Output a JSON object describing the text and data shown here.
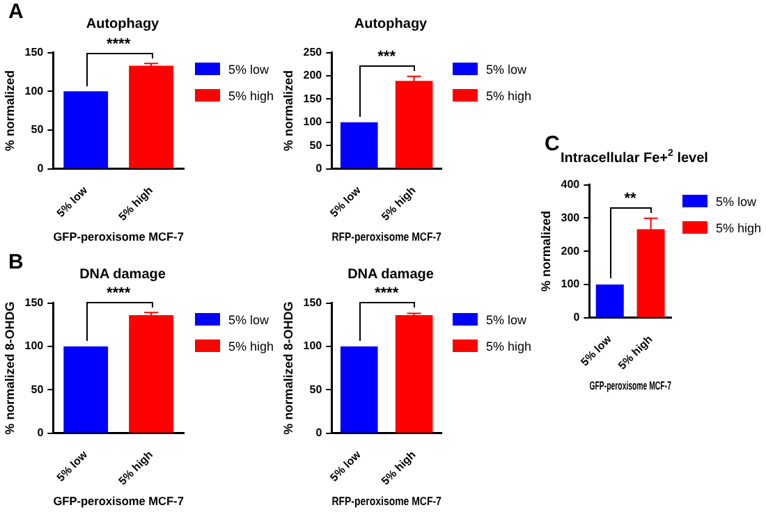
{
  "chart_data": [
    {
      "type": "bar",
      "title": "Autophagy",
      "xlabel": "GFP-peroxisome MCF-7",
      "ylabel": "% normalized",
      "categories": [
        "5% low",
        "5% high"
      ],
      "ylim": [
        0,
        150
      ],
      "yticks": [
        0,
        50,
        100,
        150
      ],
      "legend": "right",
      "annotations": [
        "A",
        "****"
      ],
      "series": [
        {
          "name": "5% low",
          "color": "#0000ff",
          "values": [
            100,
            null
          ]
        },
        {
          "name": "5% high",
          "color": "#ff0000",
          "values": [
            null,
            133
          ],
          "errors": [
            null,
            3
          ]
        }
      ]
    },
    {
      "type": "bar",
      "title": "Autophagy",
      "xlabel": "RFP-peroxisome MCF-7",
      "ylabel": "% normalized",
      "categories": [
        "5% low",
        "5% high"
      ],
      "ylim": [
        0,
        250
      ],
      "yticks": [
        0,
        50,
        100,
        150,
        200,
        250
      ],
      "legend": "right",
      "annotations": [
        "***"
      ],
      "series": [
        {
          "name": "5% low",
          "color": "#0000ff",
          "values": [
            100,
            null
          ]
        },
        {
          "name": "5% high",
          "color": "#ff0000",
          "values": [
            null,
            189
          ],
          "errors": [
            null,
            10
          ]
        }
      ]
    },
    {
      "type": "bar",
      "title": "DNA damage",
      "xlabel": "GFP-peroxisome MCF-7",
      "ylabel": "% normalized 8-OHDG",
      "categories": [
        "5% low",
        "5% high"
      ],
      "ylim": [
        0,
        150
      ],
      "yticks": [
        0,
        50,
        100,
        150
      ],
      "legend": "right",
      "annotations": [
        "B",
        "****"
      ],
      "series": [
        {
          "name": "5% low",
          "color": "#0000ff",
          "values": [
            100,
            null
          ]
        },
        {
          "name": "5% high",
          "color": "#ff0000",
          "values": [
            null,
            136
          ],
          "errors": [
            null,
            3
          ]
        }
      ]
    },
    {
      "type": "bar",
      "title": "DNA damage",
      "xlabel": "RFP-peroxisome MCF-7",
      "ylabel": "% normalized 8-OHDG",
      "categories": [
        "5% low",
        "5% high"
      ],
      "ylim": [
        0,
        150
      ],
      "yticks": [
        0,
        50,
        100,
        150
      ],
      "legend": "right",
      "annotations": [
        "****"
      ],
      "series": [
        {
          "name": "5% low",
          "color": "#0000ff",
          "values": [
            100,
            null
          ]
        },
        {
          "name": "5% high",
          "color": "#ff0000",
          "values": [
            null,
            136
          ],
          "errors": [
            null,
            2
          ]
        }
      ]
    },
    {
      "type": "bar",
      "title": "Intracellular Fe+$^{2}$ level",
      "xlabel": "GFP-peroxisome MCF-7",
      "ylabel": "% normalized",
      "categories": [
        "5% low",
        "5% high"
      ],
      "ylim": [
        0,
        400
      ],
      "yticks": [
        0,
        100,
        200,
        300,
        400
      ],
      "legend": "right",
      "annotations": [
        "C",
        "**"
      ],
      "series": [
        {
          "name": "5% low",
          "color": "#0000ff",
          "values": [
            100,
            null
          ]
        },
        {
          "name": "5% high",
          "color": "#ff0000",
          "values": [
            null,
            266
          ],
          "errors": [
            null,
            33
          ]
        }
      ]
    }
  ]
}
